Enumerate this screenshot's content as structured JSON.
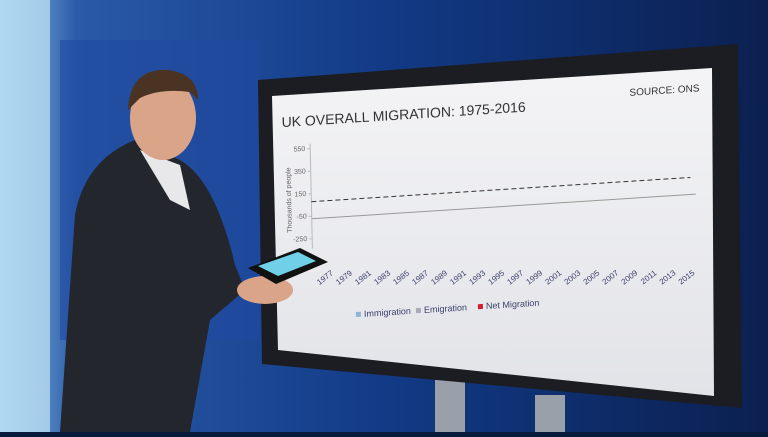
{
  "chart_data": {
    "type": "line",
    "title": "UK OVERALL MIGRATION: 1975-2016",
    "source": "SOURCE: ONS",
    "y_label": "Thousands of people",
    "categories": [
      "1977",
      "1979",
      "1981",
      "1983",
      "1985",
      "1987",
      "1989",
      "1991",
      "1993",
      "1995",
      "1997",
      "1999",
      "2001",
      "2003",
      "2005",
      "2007",
      "2009",
      "2011",
      "2013",
      "2015"
    ],
    "series": [
      {
        "name": "Immigration",
        "color": "#8fb4d6",
        "values": [
          null,
          null,
          null,
          null,
          null,
          null,
          null,
          null,
          null,
          null,
          null,
          null,
          null,
          null,
          null,
          null,
          null,
          null,
          null,
          null
        ]
      },
      {
        "name": "Emigration",
        "color": "#a9a9b8",
        "values": [
          null,
          null,
          null,
          null,
          null,
          null,
          null,
          null,
          null,
          null,
          null,
          null,
          null,
          null,
          null,
          null,
          null,
          null,
          null,
          null
        ]
      },
      {
        "name": "Net Migration",
        "color": "#d0202e",
        "values": [
          null,
          null,
          null,
          null,
          null,
          null,
          null,
          null,
          null,
          null,
          null,
          null,
          null,
          null,
          null,
          null,
          null,
          null,
          null,
          null
        ]
      }
    ],
    "ylim": [
      -250,
      550
    ],
    "yticks": [
      550,
      350,
      150,
      -50,
      -250
    ]
  }
}
